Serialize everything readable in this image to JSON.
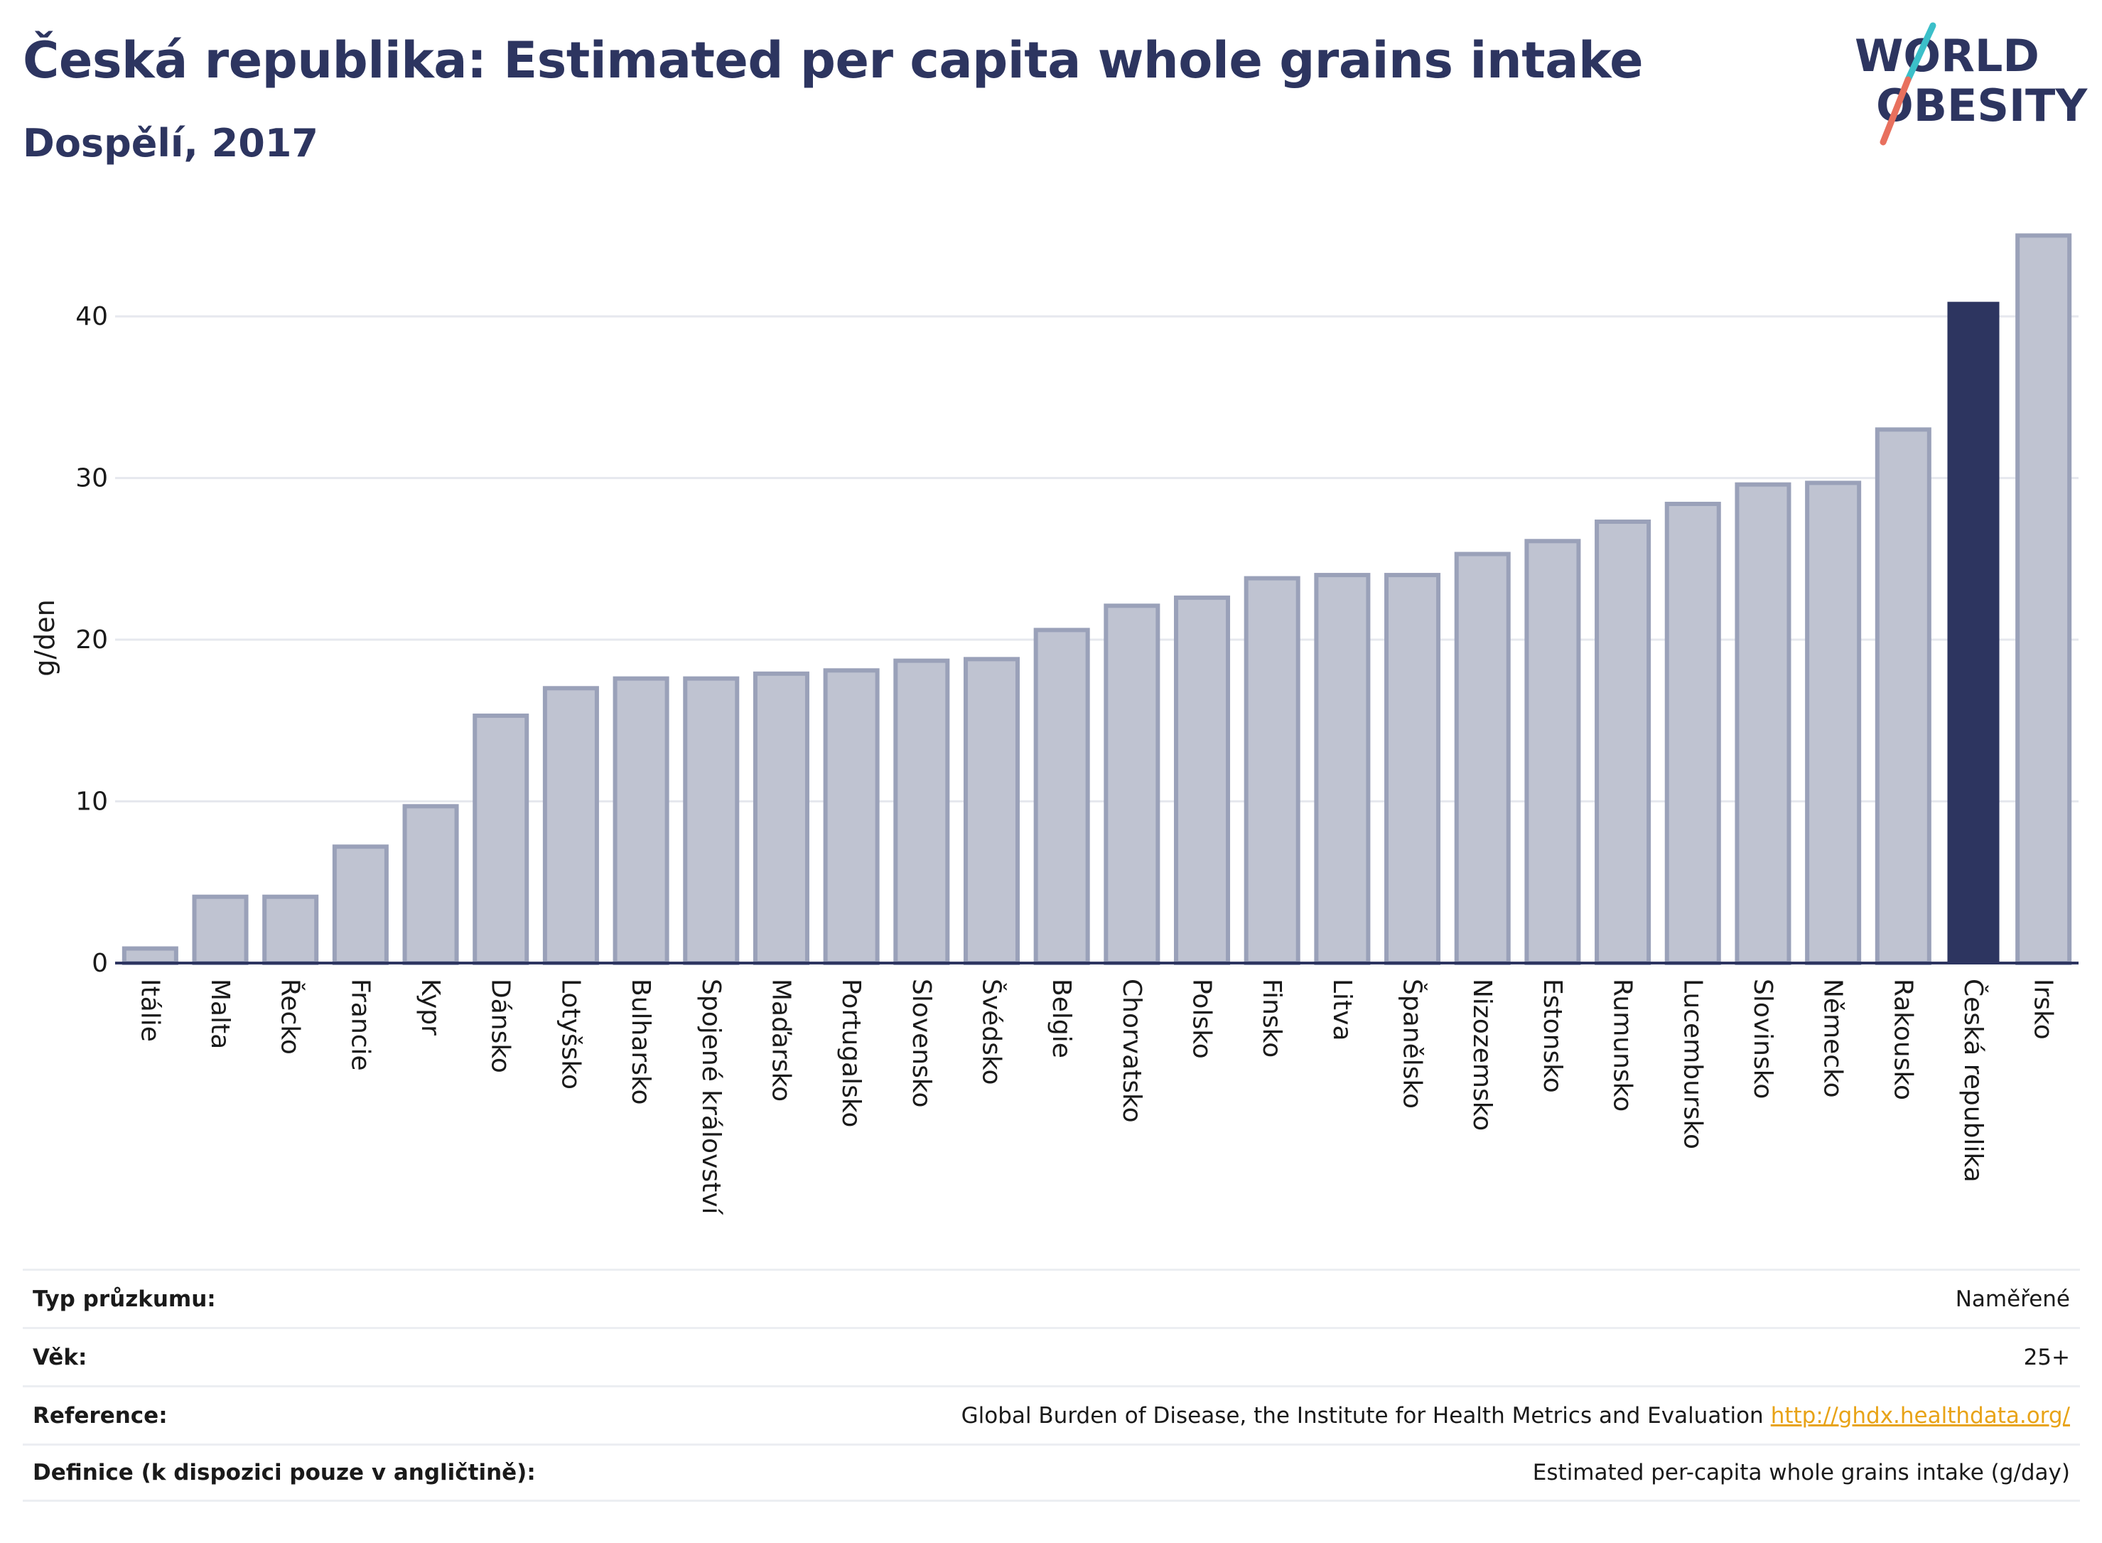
{
  "header": {
    "title": "Česká republika: Estimated per capita whole grains intake",
    "subtitle": "Dospělí, 2017"
  },
  "logo": {
    "line1": "WORLD",
    "line2": "OBESITY",
    "colors": {
      "text": "#2d3560",
      "slash_teal": "#3bbfc9",
      "slash_coral": "#e8705e"
    }
  },
  "chart_data": {
    "type": "bar",
    "ylabel": "g/den",
    "ylim": [
      0,
      45.5
    ],
    "yticks": [
      0,
      10,
      20,
      30,
      40
    ],
    "grid": true,
    "categories": [
      "Itálie",
      "Malta",
      "Řecko",
      "Francie",
      "Kypr",
      "Dánsko",
      "Lotyšsko",
      "Bulharsko",
      "Spojené království",
      "Maďarsko",
      "Portugalsko",
      "Slovensko",
      "Švédsko",
      "Belgie",
      "Chorvatsko",
      "Polsko",
      "Finsko",
      "Litva",
      "Španělsko",
      "Nizozemsko",
      "Estonsko",
      "Rumunsko",
      "Lucembursko",
      "Slovinsko",
      "Německo",
      "Rakousko",
      "Česká republika",
      "Irsko"
    ],
    "values": [
      0.9,
      4.1,
      4.1,
      7.2,
      9.7,
      15.3,
      17.0,
      17.6,
      17.6,
      17.9,
      18.1,
      18.7,
      18.8,
      20.6,
      22.1,
      22.6,
      23.8,
      24.0,
      24.0,
      25.3,
      26.1,
      27.3,
      28.4,
      29.6,
      29.7,
      33.0,
      40.9,
      45.0
    ],
    "highlight": "Česká republika",
    "colors": {
      "bar": "#bfc3d1",
      "bar_edge": "#9aa1b9",
      "highlight": "#2d3560",
      "grid": "#e6e8ee",
      "axis": "#2d3560"
    }
  },
  "info_table": [
    {
      "label": "Typ průzkumu:",
      "value": "Naměřené"
    },
    {
      "label": "Věk:",
      "value": "25+"
    },
    {
      "label": "Reference:",
      "value": "Global Burden of Disease, the Institute for Health Metrics and Evaluation",
      "link": "http://ghdx.healthdata.org/"
    },
    {
      "label": "Definice (k dispozici pouze v angličtině):",
      "value": "Estimated per-capita whole grains intake (g/day)"
    }
  ]
}
